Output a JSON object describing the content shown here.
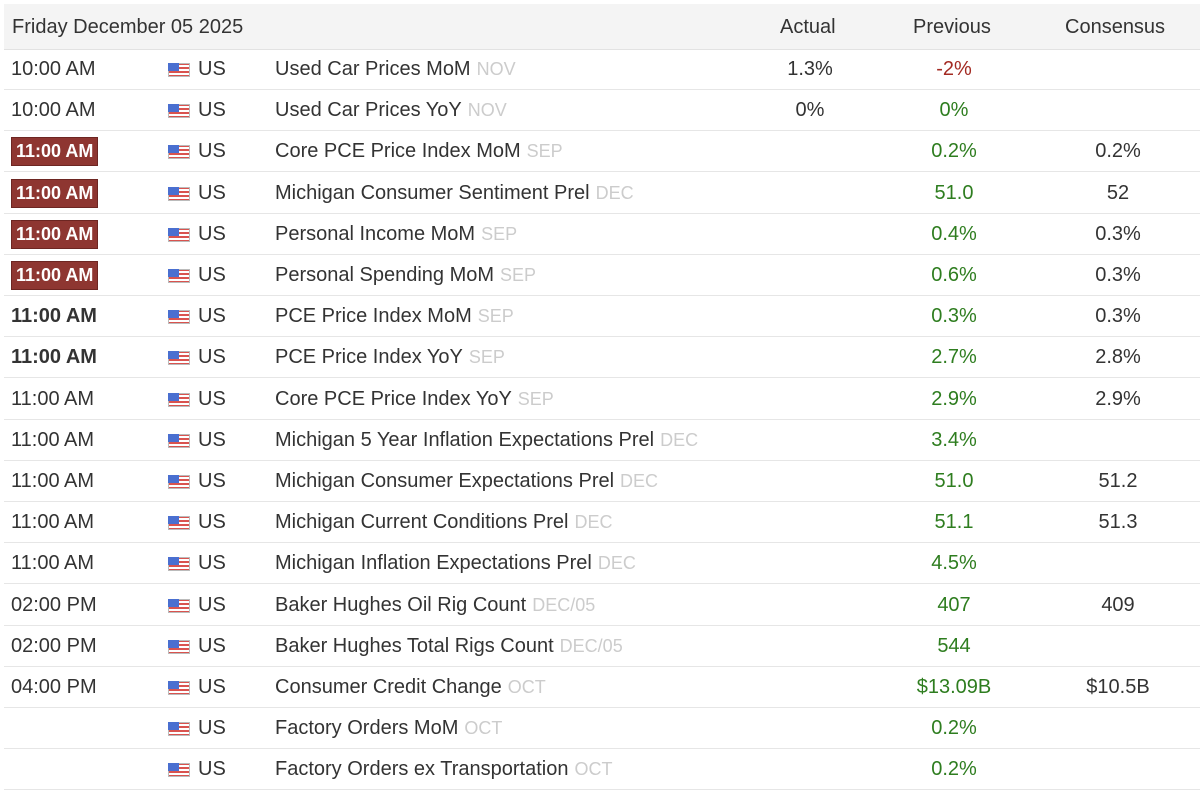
{
  "header": {
    "date": "Friday December 05 2025",
    "actual": "Actual",
    "previous": "Previous",
    "consensus": "Consensus"
  },
  "rows": [
    {
      "time": "10:00 AM",
      "style": "normal",
      "country": "US",
      "event": "Used Car Prices MoM",
      "period": "NOV",
      "actual": "1.3%",
      "previous": "-2%",
      "prev_color": "red",
      "consensus": ""
    },
    {
      "time": "10:00 AM",
      "style": "normal",
      "country": "US",
      "event": "Used Car Prices YoY",
      "period": "NOV",
      "actual": "0%",
      "previous": "0%",
      "prev_color": "green",
      "consensus": ""
    },
    {
      "time": "11:00 AM",
      "style": "badge",
      "country": "US",
      "event": "Core PCE Price Index MoM",
      "period": "SEP",
      "actual": "",
      "previous": "0.2%",
      "prev_color": "green",
      "consensus": "0.2%"
    },
    {
      "time": "11:00 AM",
      "style": "badge",
      "country": "US",
      "event": "Michigan Consumer Sentiment Prel",
      "period": "DEC",
      "actual": "",
      "previous": "51.0",
      "prev_color": "green",
      "consensus": "52"
    },
    {
      "time": "11:00 AM",
      "style": "badge",
      "country": "US",
      "event": "Personal Income MoM",
      "period": "SEP",
      "actual": "",
      "previous": "0.4%",
      "prev_color": "green",
      "consensus": "0.3%"
    },
    {
      "time": "11:00 AM",
      "style": "badge",
      "country": "US",
      "event": "Personal Spending MoM",
      "period": "SEP",
      "actual": "",
      "previous": "0.6%",
      "prev_color": "green",
      "consensus": "0.3%"
    },
    {
      "time": "11:00 AM",
      "style": "bold",
      "country": "US",
      "event": "PCE Price Index MoM",
      "period": "SEP",
      "actual": "",
      "previous": "0.3%",
      "prev_color": "green",
      "consensus": "0.3%"
    },
    {
      "time": "11:00 AM",
      "style": "bold",
      "country": "US",
      "event": "PCE Price Index YoY",
      "period": "SEP",
      "actual": "",
      "previous": "2.7%",
      "prev_color": "green",
      "consensus": "2.8%"
    },
    {
      "time": "11:00 AM",
      "style": "normal",
      "country": "US",
      "event": "Core PCE Price Index YoY",
      "period": "SEP",
      "actual": "",
      "previous": "2.9%",
      "prev_color": "green",
      "consensus": "2.9%"
    },
    {
      "time": "11:00 AM",
      "style": "normal",
      "country": "US",
      "event": "Michigan 5 Year Inflation Expectations Prel",
      "period": "DEC",
      "actual": "",
      "previous": "3.4%",
      "prev_color": "green",
      "consensus": ""
    },
    {
      "time": "11:00 AM",
      "style": "normal",
      "country": "US",
      "event": "Michigan Consumer Expectations Prel",
      "period": "DEC",
      "actual": "",
      "previous": "51.0",
      "prev_color": "green",
      "consensus": "51.2"
    },
    {
      "time": "11:00 AM",
      "style": "normal",
      "country": "US",
      "event": "Michigan Current Conditions Prel",
      "period": "DEC",
      "actual": "",
      "previous": "51.1",
      "prev_color": "green",
      "consensus": "51.3"
    },
    {
      "time": "11:00 AM",
      "style": "normal",
      "country": "US",
      "event": "Michigan Inflation Expectations Prel",
      "period": "DEC",
      "actual": "",
      "previous": "4.5%",
      "prev_color": "green",
      "consensus": ""
    },
    {
      "time": "02:00 PM",
      "style": "normal",
      "country": "US",
      "event": "Baker Hughes Oil Rig Count",
      "period": "DEC/05",
      "actual": "",
      "previous": "407",
      "prev_color": "green",
      "consensus": "409"
    },
    {
      "time": "02:00 PM",
      "style": "normal",
      "country": "US",
      "event": "Baker Hughes Total Rigs Count",
      "period": "DEC/05",
      "actual": "",
      "previous": "544",
      "prev_color": "green",
      "consensus": ""
    },
    {
      "time": "04:00 PM",
      "style": "normal",
      "country": "US",
      "event": "Consumer Credit Change",
      "period": "OCT",
      "actual": "",
      "previous": "$13.09B",
      "prev_color": "green",
      "consensus": "$10.5B"
    },
    {
      "time": "",
      "style": "normal",
      "country": "US",
      "event": "Factory Orders MoM",
      "period": "OCT",
      "actual": "",
      "previous": "0.2%",
      "prev_color": "green",
      "consensus": ""
    },
    {
      "time": "",
      "style": "normal",
      "country": "US",
      "event": "Factory Orders ex Transportation",
      "period": "OCT",
      "actual": "",
      "previous": "0.2%",
      "prev_color": "green",
      "consensus": ""
    }
  ]
}
